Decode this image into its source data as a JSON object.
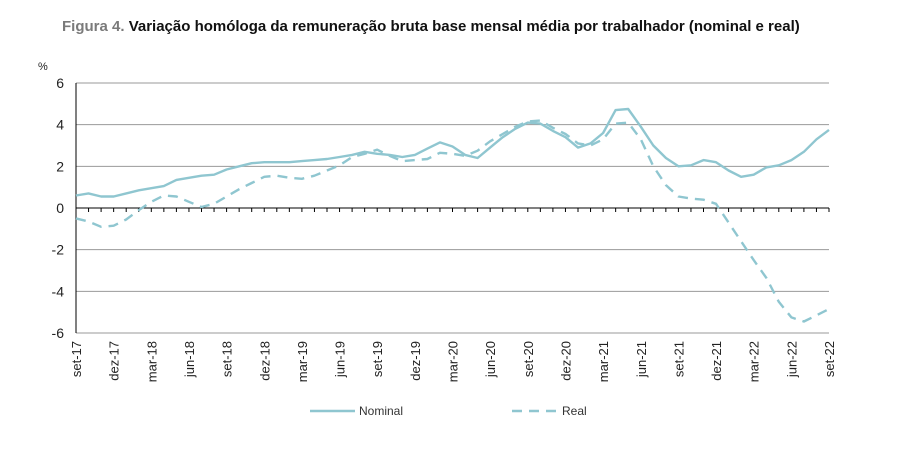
{
  "figure": {
    "label": "Figura 4.",
    "title": "Variação homóloga da remuneração bruta base mensal média por trabalhador (nominal e real)"
  },
  "colors": {
    "series": "#8fc6d0",
    "grid": "#9a9a9a",
    "axis": "#000000"
  },
  "chart_data": {
    "type": "line",
    "title": "Variação homóloga da remuneração bruta base mensal média por trabalhador (nominal e real)",
    "ylabel": "%",
    "ylim": [
      -6,
      6
    ],
    "yticks": [
      6,
      4,
      2,
      0,
      -2,
      -4,
      -6
    ],
    "grid": true,
    "legend": "bottom",
    "tick_labels": [
      "set-17",
      "dez-17",
      "mar-18",
      "jun-18",
      "set-18",
      "dez-18",
      "mar-19",
      "jun-19",
      "set-19",
      "dez-19",
      "mar-20",
      "jun-20",
      "set-20",
      "dez-20",
      "mar-21",
      "jun-21",
      "set-21",
      "dez-21",
      "mar-22",
      "jun-22",
      "set-22"
    ],
    "x": [
      "set-17",
      "out-17",
      "nov-17",
      "dez-17",
      "jan-18",
      "fev-18",
      "mar-18",
      "abr-18",
      "mai-18",
      "jun-18",
      "jul-18",
      "ago-18",
      "set-18",
      "out-18",
      "nov-18",
      "dez-18",
      "jan-19",
      "fev-19",
      "mar-19",
      "abr-19",
      "mai-19",
      "jun-19",
      "jul-19",
      "ago-19",
      "set-19",
      "out-19",
      "nov-19",
      "dez-19",
      "jan-20",
      "fev-20",
      "mar-20",
      "abr-20",
      "mai-20",
      "jun-20",
      "jul-20",
      "ago-20",
      "set-20",
      "out-20",
      "nov-20",
      "dez-20",
      "jan-21",
      "fev-21",
      "mar-21",
      "abr-21",
      "mai-21",
      "jun-21",
      "jul-21",
      "ago-21",
      "set-21",
      "out-21",
      "nov-21",
      "dez-21",
      "jan-22",
      "fev-22",
      "mar-22",
      "abr-22",
      "mai-22",
      "jun-22",
      "jul-22",
      "ago-22",
      "set-22"
    ],
    "series": [
      {
        "name": "Nominal",
        "style": "solid",
        "values": [
          0.6,
          0.7,
          0.55,
          0.55,
          0.7,
          0.85,
          0.95,
          1.05,
          1.35,
          1.45,
          1.55,
          1.6,
          1.85,
          2.0,
          2.15,
          2.2,
          2.2,
          2.2,
          2.25,
          2.3,
          2.35,
          2.45,
          2.55,
          2.7,
          2.6,
          2.55,
          2.45,
          2.55,
          2.85,
          3.15,
          2.95,
          2.55,
          2.4,
          2.9,
          3.4,
          3.8,
          4.1,
          4.05,
          3.7,
          3.4,
          2.9,
          3.1,
          3.6,
          4.7,
          4.75,
          3.9,
          3.0,
          2.4,
          2.0,
          2.05,
          2.3,
          2.2,
          1.8,
          1.5,
          1.6,
          1.95,
          2.05,
          2.3,
          2.7,
          3.3,
          3.75
        ]
      },
      {
        "name": "Real",
        "style": "dashed",
        "values": [
          -0.5,
          -0.65,
          -0.9,
          -0.85,
          -0.55,
          -0.1,
          0.3,
          0.6,
          0.55,
          0.3,
          0.05,
          0.2,
          0.55,
          0.9,
          1.2,
          1.5,
          1.55,
          1.45,
          1.4,
          1.55,
          1.8,
          2.05,
          2.45,
          2.6,
          2.8,
          2.5,
          2.25,
          2.3,
          2.35,
          2.65,
          2.6,
          2.5,
          2.75,
          3.2,
          3.55,
          3.9,
          4.15,
          4.2,
          3.85,
          3.55,
          3.1,
          3.0,
          3.3,
          4.05,
          4.1,
          3.3,
          2.0,
          1.1,
          0.55,
          0.45,
          0.4,
          0.2,
          -0.7,
          -1.6,
          -2.5,
          -3.35,
          -4.5,
          -5.25,
          -5.45,
          -5.15,
          -4.85
        ]
      }
    ]
  }
}
